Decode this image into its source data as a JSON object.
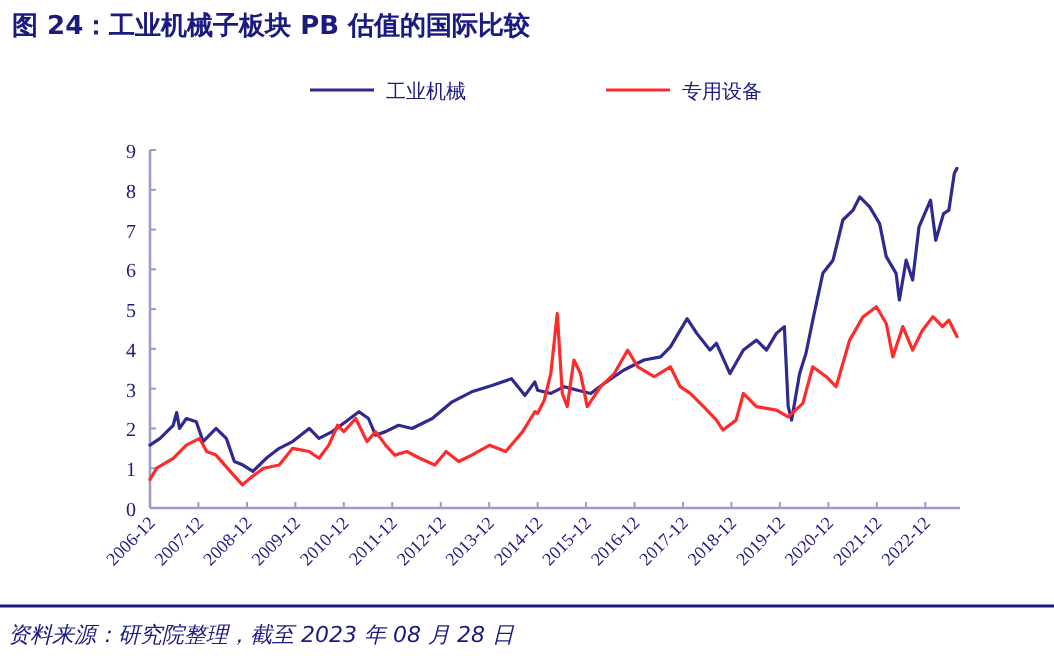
{
  "chart_data": {
    "type": "line",
    "title": "图 24：工业机械子板块 PB 估值的国际比较",
    "annotations": [
      "资料来源：研究院整理，截至 2023 年 08 月 28 日"
    ],
    "legend": "top",
    "grid": false,
    "marker": "none",
    "line_style": "solid",
    "ylim": [
      0,
      9
    ],
    "yticks": [
      0,
      1,
      2,
      3,
      4,
      5,
      6,
      7,
      8,
      9
    ],
    "xlim": [
      "2006-12-01",
      "2023-08-20"
    ],
    "xticks": [
      "2006-12",
      "2007-12",
      "2008-12",
      "2009-12",
      "2010-12",
      "2011-12",
      "2012-12",
      "2013-12",
      "2014-12",
      "2015-12",
      "2016-12",
      "2017-12",
      "2018-12",
      "2019-12",
      "2020-12",
      "2021-12",
      "2022-12"
    ],
    "series": [
      {
        "name": "工业机械",
        "color": "#2e2a8f",
        "x": [
          "2006-12-01",
          "2007-02-15",
          "2007-05-25",
          "2007-06-20",
          "2007-07-12",
          "2007-09-01",
          "2007-11-15",
          "2008-01-05",
          "2008-04-12",
          "2008-06-28",
          "2008-08-28",
          "2008-11-01",
          "2009-01-15",
          "2009-04-25",
          "2009-08-01",
          "2009-11-10",
          "2010-03-15",
          "2010-05-28",
          "2010-09-05",
          "2010-12-15",
          "2011-03-25",
          "2011-06-05",
          "2011-07-28",
          "2011-10-12",
          "2012-01-18",
          "2012-04-28",
          "2012-09-28",
          "2013-02-25",
          "2013-07-22",
          "2013-12-22",
          "2014-05-18",
          "2014-08-28",
          "2014-11-10",
          "2014-12-01",
          "2015-03-10",
          "2015-06-20",
          "2015-09-28",
          "2016-01-05",
          "2016-04-15",
          "2016-09-12",
          "2017-02-10",
          "2017-06-15",
          "2017-08-28",
          "2018-01-01",
          "2018-03-15",
          "2018-06-22",
          "2018-08-10",
          "2018-11-20",
          "2019-03-01",
          "2019-06-08",
          "2019-08-22",
          "2019-11-05",
          "2020-01-04",
          "2020-02-02",
          "2020-02-28",
          "2020-04-28",
          "2020-06-15",
          "2020-08-05",
          "2020-10-20",
          "2021-01-05",
          "2021-03-20",
          "2021-06-05",
          "2021-07-25",
          "2021-10-08",
          "2021-12-22",
          "2022-02-10",
          "2022-04-25",
          "2022-05-20",
          "2022-07-10",
          "2022-08-28",
          "2022-10-15",
          "2023-01-10",
          "2023-02-18",
          "2023-04-18",
          "2023-05-28",
          "2023-07-08",
          "2023-07-28"
        ],
        "values": [
          1.58,
          1.75,
          2.08,
          2.4,
          2.0,
          2.25,
          2.17,
          1.67,
          2.0,
          1.75,
          1.17,
          1.08,
          0.92,
          1.25,
          1.5,
          1.67,
          2.0,
          1.75,
          1.92,
          2.17,
          2.42,
          2.25,
          1.83,
          1.92,
          2.08,
          2.0,
          2.25,
          2.67,
          2.92,
          3.08,
          3.25,
          2.83,
          3.17,
          2.96,
          2.88,
          3.05,
          2.96,
          2.88,
          3.13,
          3.47,
          3.72,
          3.8,
          4.05,
          4.76,
          4.39,
          3.97,
          4.14,
          3.38,
          3.97,
          4.22,
          3.97,
          4.39,
          4.56,
          2.55,
          2.21,
          3.38,
          3.89,
          4.72,
          5.9,
          6.23,
          7.24,
          7.49,
          7.82,
          7.57,
          7.15,
          6.32,
          5.9,
          5.23,
          6.23,
          5.73,
          7.07,
          7.74,
          6.73,
          7.4,
          7.49,
          8.41,
          8.54
        ]
      },
      {
        "name": "专用设备",
        "color": "#ff2a2a",
        "x": [
          "2006-12-01",
          "2007-01-20",
          "2007-05-25",
          "2007-09-01",
          "2007-12-10",
          "2008-02-01",
          "2008-04-12",
          "2008-07-28",
          "2008-10-28",
          "2008-12-25",
          "2009-04-05",
          "2009-08-01",
          "2009-11-10",
          "2010-03-15",
          "2010-05-28",
          "2010-08-10",
          "2010-10-15",
          "2010-12-01",
          "2011-03-01",
          "2011-05-25",
          "2011-07-28",
          "2011-10-12",
          "2011-12-20",
          "2012-03-20",
          "2012-06-25",
          "2012-10-18",
          "2013-01-10",
          "2013-04-15",
          "2013-07-22",
          "2013-12-05",
          "2014-04-05",
          "2014-08-10",
          "2014-11-10",
          "2014-12-01",
          "2015-01-20",
          "2015-03-10",
          "2015-04-28",
          "2015-06-05",
          "2015-07-12",
          "2015-09-01",
          "2015-10-20",
          "2015-12-10",
          "2016-03-20",
          "2016-07-01",
          "2016-10-10",
          "2016-12-25",
          "2017-04-28",
          "2017-08-28",
          "2017-11-10",
          "2018-01-25",
          "2018-05-05",
          "2018-08-10",
          "2018-09-28",
          "2019-01-05",
          "2019-03-01",
          "2019-06-08",
          "2019-11-05",
          "2020-02-02",
          "2020-05-22",
          "2020-08-05",
          "2020-11-15",
          "2021-01-28",
          "2021-05-10",
          "2021-08-20",
          "2021-11-28",
          "2022-02-10",
          "2022-04-01",
          "2022-06-15",
          "2022-08-28",
          "2022-11-10",
          "2023-01-28",
          "2023-04-10",
          "2023-05-28",
          "2023-07-28"
        ],
        "values": [
          0.72,
          1.0,
          1.25,
          1.58,
          1.75,
          1.42,
          1.33,
          0.92,
          0.58,
          0.75,
          1.0,
          1.08,
          1.5,
          1.42,
          1.25,
          1.58,
          2.08,
          1.92,
          2.25,
          1.67,
          1.92,
          1.58,
          1.33,
          1.42,
          1.25,
          1.08,
          1.42,
          1.17,
          1.33,
          1.58,
          1.42,
          1.92,
          2.42,
          2.38,
          2.71,
          3.38,
          4.89,
          2.88,
          2.55,
          3.72,
          3.38,
          2.55,
          3.05,
          3.38,
          3.97,
          3.55,
          3.3,
          3.55,
          3.05,
          2.88,
          2.55,
          2.21,
          1.96,
          2.21,
          2.88,
          2.55,
          2.46,
          2.29,
          2.63,
          3.55,
          3.3,
          3.05,
          4.22,
          4.81,
          5.06,
          4.64,
          3.8,
          4.56,
          3.97,
          4.47,
          4.81,
          4.56,
          4.72,
          4.31
        ]
      }
    ]
  }
}
